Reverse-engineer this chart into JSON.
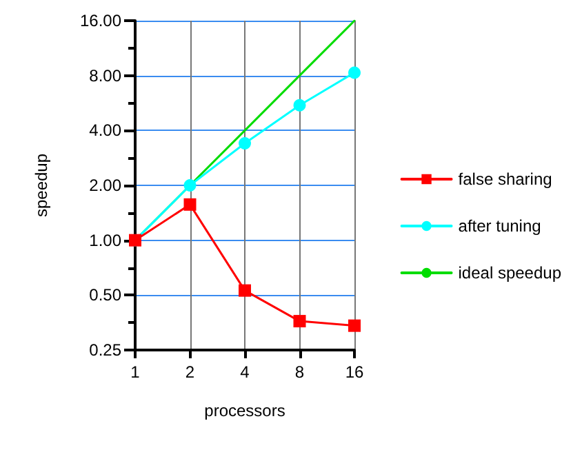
{
  "chart_data": {
    "type": "line",
    "xlabel": "processors",
    "ylabel": "speedup",
    "log": "xy",
    "grid": true,
    "legend": "right",
    "x": [
      1,
      2,
      4,
      8,
      16
    ],
    "xlim": [
      1,
      16
    ],
    "xticks": [
      1,
      2,
      4,
      8,
      16
    ],
    "ylim": [
      0.25,
      16
    ],
    "yticks": [
      {
        "value": 0.25,
        "label": "0.25"
      },
      {
        "value": 0.354,
        "label": null
      },
      {
        "value": 0.5,
        "label": "0.50"
      },
      {
        "value": 0.707,
        "label": null
      },
      {
        "value": 1,
        "label": "1.00"
      },
      {
        "value": 1.414,
        "label": null
      },
      {
        "value": 2,
        "label": "2.00"
      },
      {
        "value": 2.828,
        "label": null
      },
      {
        "value": 4,
        "label": "4.00"
      },
      {
        "value": 5.657,
        "label": null
      },
      {
        "value": 8,
        "label": "8.00"
      },
      {
        "value": 11.31,
        "label": null
      },
      {
        "value": 16,
        "label": "16.00"
      }
    ],
    "series": [
      {
        "name": "false sharing",
        "color": "#ff0000",
        "marker": "square",
        "values": [
          1,
          1.57,
          0.53,
          0.36,
          0.34
        ]
      },
      {
        "name": "after tuning",
        "color": "#00ffff",
        "marker": "circle",
        "values": [
          1,
          2,
          3.4,
          5.5,
          8.3
        ]
      },
      {
        "name": "ideal speedup",
        "color": "#00dd00",
        "marker": "none",
        "values": [
          1,
          2,
          4,
          8,
          16
        ]
      }
    ]
  }
}
